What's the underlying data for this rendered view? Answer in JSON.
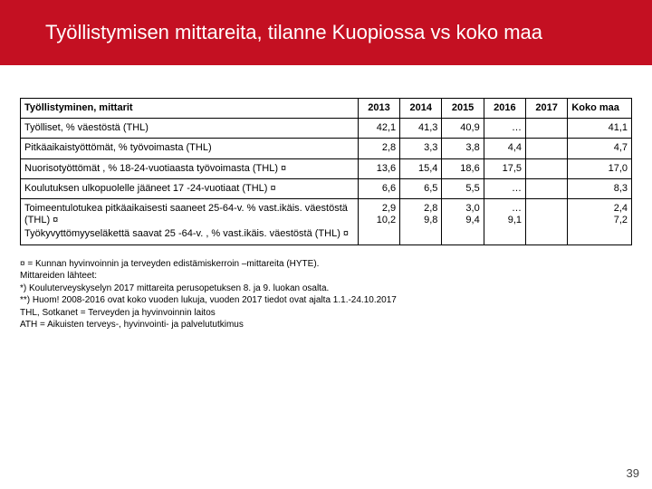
{
  "title": "Työllistymisen mittareita, tilanne Kuopiossa vs koko maa",
  "table": {
    "header_label": "Työllistyminen, mittarit",
    "years": [
      "2013",
      "2014",
      "2015",
      "2016",
      "2017"
    ],
    "koko_label": "Koko maa",
    "rows": [
      {
        "label": "Työlliset, % väestöstä (THL)",
        "vals": [
          "42,1",
          "41,3",
          "40,9",
          "…",
          ""
        ],
        "koko": "41,1"
      },
      {
        "label": "Pitkäaikaistyöttömät, % työvoimasta (THL)",
        "vals": [
          "2,8",
          "3,3",
          "3,8",
          "4,4",
          ""
        ],
        "koko": "4,7"
      },
      {
        "label": "Nuorisotyöttömät , % 18-24-vuotiaasta työvoimasta (THL) ¤",
        "vals": [
          "13,6",
          "15,4",
          "18,6",
          "17,5",
          ""
        ],
        "koko": "17,0"
      },
      {
        "label": "Koulutuksen ulkopuolelle jääneet 17 -24-vuotiaat (THL) ¤",
        "vals": [
          "6,6",
          "6,5",
          "5,5",
          "…",
          ""
        ],
        "koko": "8,3"
      },
      {
        "label_lines": [
          "Toimeentulotukea pitkäaikaisesti saaneet 25-64-v. % vast.ikäis. väestöstä (THL) ¤",
          "Työkyvyttömyyseläkettä saavat 25 -64-v. , % vast.ikäis. väestöstä (THL) ¤"
        ],
        "multival": [
          [
            "2,9",
            "2,8",
            "3,0",
            "…",
            ""
          ],
          [
            "10,2",
            "9,8",
            "9,4",
            "9,1",
            ""
          ]
        ],
        "koko_multi": [
          "2,4",
          "7,2"
        ]
      }
    ]
  },
  "footnotes": [
    "¤ = Kunnan hyvinvoinnin ja terveyden edistämiskerroin –mittareita (HYTE).",
    "Mittareiden lähteet:",
    "*) Kouluterveyskyselyn 2017 mittareita perusopetuksen 8. ja 9. luokan osalta.",
    "**) Huom! 2008-2016 ovat koko vuoden lukuja, vuoden 2017 tiedot ovat ajalta 1.1.-24.10.2017",
    "THL, Sotkanet = Terveyden ja hyvinvoinnin laitos",
    "ATH = Aikuisten terveys-, hyvinvointi- ja palvelututkimus"
  ],
  "page_number": "39",
  "colors": {
    "title_bg": "#c41022",
    "title_fg": "#ffffff",
    "border": "#000000"
  }
}
